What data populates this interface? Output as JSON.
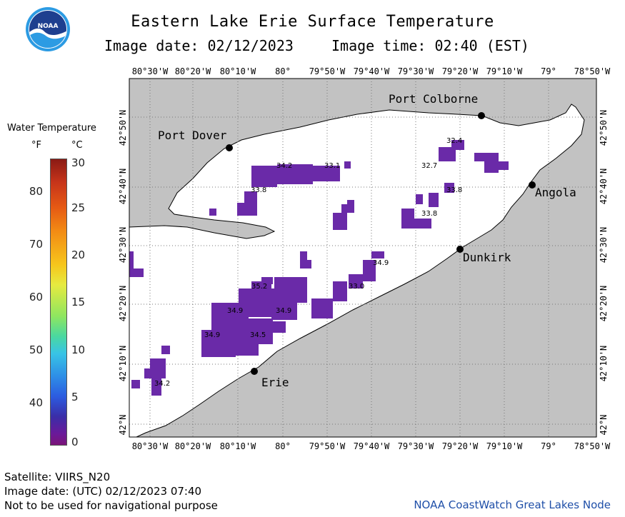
{
  "header": {
    "title": "Eastern Lake Erie Surface Temperature",
    "image_date_label": "Image date: 02/12/2023",
    "image_time_label": "Image time: 02:40 (EST)"
  },
  "logo": {
    "text": "NOAA",
    "colors": {
      "ring": "#ffffff",
      "sky": "#1e3f8f",
      "sea": "#2c9be3"
    }
  },
  "legend": {
    "title": "Water Temperature",
    "unit_f": "°F",
    "unit_c": "°C",
    "fahrenheit_ticks": [
      "80",
      "70",
      "60",
      "50",
      "40"
    ],
    "celsius_ticks": [
      "30",
      "25",
      "20",
      "15",
      "10",
      "5",
      "0"
    ]
  },
  "map": {
    "longitude_labels": [
      "80°30'W",
      "80°20'W",
      "80°10'W",
      "80°",
      "79°50'W",
      "79°40'W",
      "79°30'W",
      "79°20'W",
      "79°10'W",
      "79°",
      "78°50'W"
    ],
    "latitude_labels": [
      "42°50'N",
      "42°40'N",
      "42°30'N",
      "42°20'N",
      "42°10'N",
      "42°N"
    ],
    "colors": {
      "land": "#c2c2c2",
      "water": "#ffffff",
      "sst": "#6a2aa8",
      "grid": "#777777"
    },
    "cities": [
      {
        "name": "Port Colborne"
      },
      {
        "name": "Port Dover"
      },
      {
        "name": "Angola"
      },
      {
        "name": "Dunkirk"
      },
      {
        "name": "Erie"
      }
    ],
    "temperature_labels": [
      "32.4",
      "34.2",
      "33.1",
      "32.7",
      "33.8",
      "33.8",
      "33.8",
      "34.9",
      "35.2",
      "33.0",
      "34.9",
      "34.9",
      "34.9",
      "34.5",
      "34.2"
    ]
  },
  "footer": {
    "satellite": "Satellite: VIIRS_N20",
    "utc_date": "Image date: (UTC) 02/12/2023  07:40",
    "disclaimer": "Not to be used for navigational purpose",
    "credit": "NOAA CoastWatch Great Lakes Node"
  }
}
